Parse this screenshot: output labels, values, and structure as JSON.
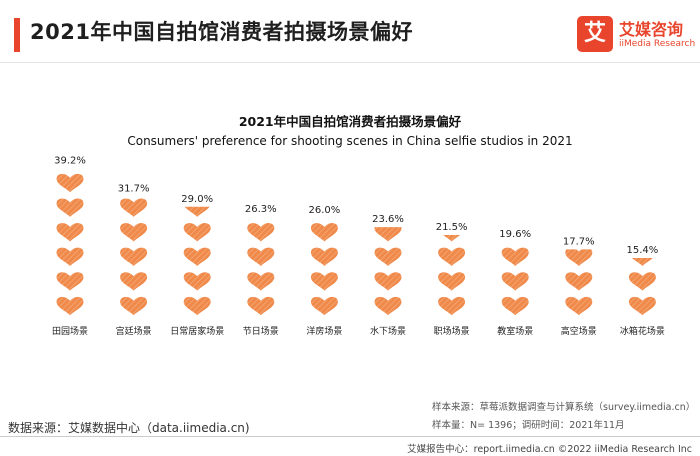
{
  "header": {
    "title": "2021年中国自拍馆消费者拍摄场景偏好",
    "logo_mark": "艾",
    "logo_cn": "艾媒咨询",
    "logo_en": "iiMedia Research"
  },
  "colors": {
    "accent": "#e8452c",
    "heart": "#f08a4b",
    "heart_stroke": "#ffffff"
  },
  "chart_data": {
    "type": "bar",
    "title": "2021年中国自拍馆消费者拍摄场景偏好",
    "subtitle": "Consumers' preference for shooting scenes in China selfie studios in 2021",
    "categories": [
      "田园场景",
      "宫廷场景",
      "日常居家场景",
      "节日场景",
      "洋房场景",
      "水下场景",
      "职场场景",
      "教室场景",
      "高空场景",
      "冰箱花场景"
    ],
    "values": [
      39.2,
      31.7,
      29.0,
      26.3,
      26.0,
      23.6,
      21.5,
      19.6,
      17.7,
      15.4
    ],
    "value_labels": [
      "39.2%",
      "31.7%",
      "29.0%",
      "26.3%",
      "26.0%",
      "23.6%",
      "21.5%",
      "19.6%",
      "17.7%",
      "15.4%"
    ],
    "mark": "stacked-heart-pictograph",
    "ylim": [
      0,
      40
    ]
  },
  "notes": {
    "sample_source": "样本来源：草莓派数据调查与计算系统（survey.iimedia.cn）",
    "sample_info": "样本量：N= 1396；调研时间：2021年11月",
    "data_source": "数据来源：艾媒数据中心（data.iimedia.cn)"
  },
  "footer": {
    "text": "艾媒报告中心：report.iimedia.cn   ©2022  iiMedia Research  Inc"
  }
}
